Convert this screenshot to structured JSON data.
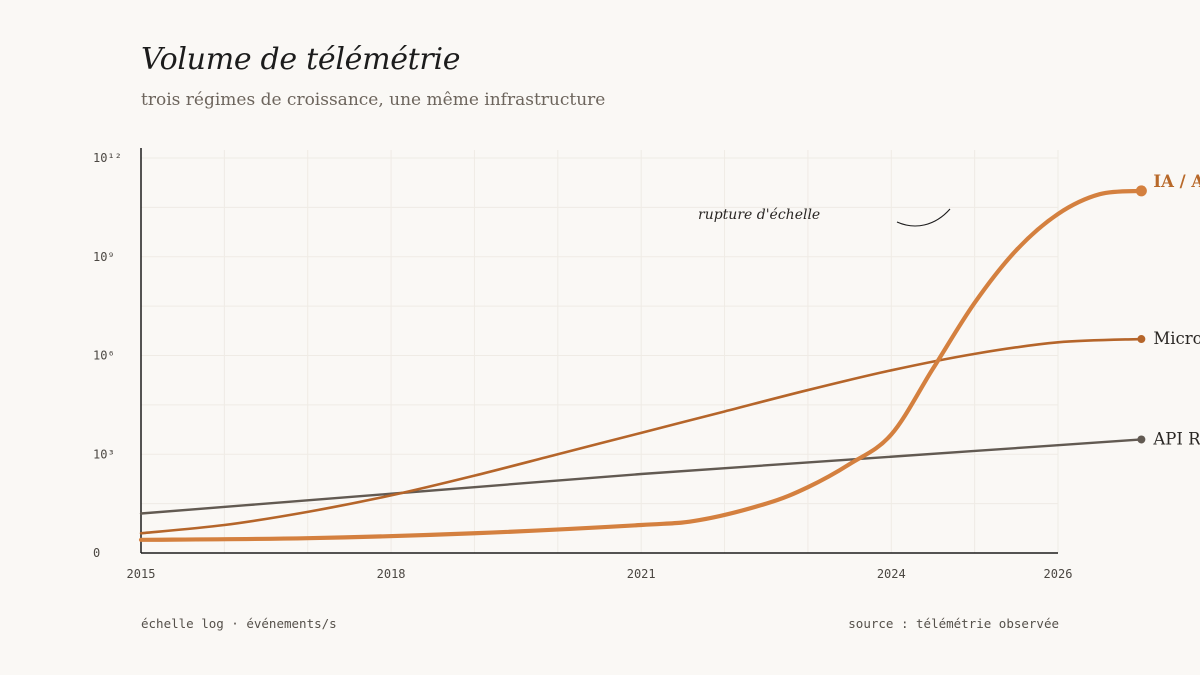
{
  "header": {
    "title": "Volume de télémétrie",
    "subtitle": "trois régimes de croissance, une même infrastructure"
  },
  "footer": {
    "left": "échelle log · événements/s",
    "right": "source : télémétrie observée"
  },
  "colors": {
    "background": "#faf8f5",
    "ia_agents": "#d4803f",
    "microservices": "#b5652a",
    "api_rest": "#625a52",
    "label_highlight": "#b8692a",
    "axis": "#1c1c1c",
    "grid": "#ece8e2"
  },
  "chart_data": {
    "type": "line",
    "title": "Volume de télémétrie",
    "subtitle": "trois régimes de croissance, une même infrastructure",
    "xlabel": "",
    "ylabel": "",
    "yscale": "log",
    "xlim": [
      2015,
      2027
    ],
    "ylim_exponent": [
      0,
      12
    ],
    "x_ticks": [
      "2015",
      "2018",
      "2021",
      "2024",
      "2026"
    ],
    "y_ticks": [
      "0",
      "10³",
      "10⁶",
      "10⁹",
      "10¹²"
    ],
    "grid": true,
    "legend": "direct labels at line ends (right)",
    "annotation": "rupture d'échelle",
    "series": [
      {
        "name": "API REST",
        "color": "#625a52",
        "x": [
          2015,
          2017,
          2019,
          2021,
          2023,
          2025,
          2027
        ],
        "log10_y": [
          1.2,
          1.6,
          2.0,
          2.4,
          2.75,
          3.1,
          3.45
        ]
      },
      {
        "name": "Microservices",
        "color": "#b5652a",
        "x": [
          2015,
          2016,
          2017,
          2018,
          2019,
          2020,
          2021,
          2022,
          2023,
          2024,
          2025,
          2026,
          2027
        ],
        "log10_y": [
          0.6,
          0.85,
          1.25,
          1.75,
          2.35,
          3.0,
          3.65,
          4.3,
          4.95,
          5.55,
          6.05,
          6.4,
          6.5
        ]
      },
      {
        "name": "IA / Agents",
        "color": "#d4803f",
        "x": [
          2015,
          2017,
          2019,
          2021,
          2021.7,
          2022.5,
          2023,
          2023.5,
          2024,
          2024.5,
          2025,
          2025.5,
          2026,
          2026.5,
          2027
        ],
        "log10_y": [
          0.4,
          0.45,
          0.6,
          0.85,
          1.0,
          1.5,
          2.0,
          2.7,
          3.6,
          5.6,
          7.6,
          9.2,
          10.3,
          10.9,
          11.0
        ]
      }
    ]
  }
}
